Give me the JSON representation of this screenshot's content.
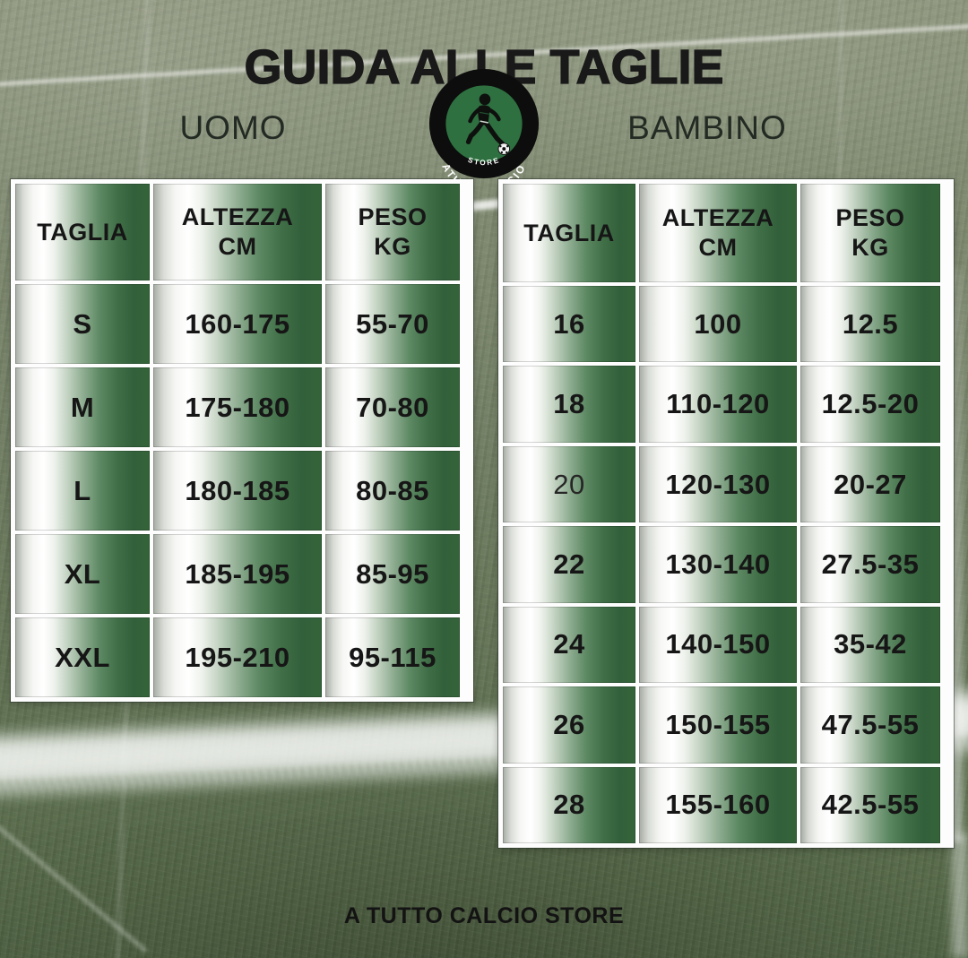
{
  "title": "GUIDA ALLE TAGLIE",
  "sections": {
    "uomo_label": "UOMO",
    "bambino_label": "BAMBINO"
  },
  "logo": {
    "arc_text": "ATUTTOCALCIO",
    "bottom_text": "STORE"
  },
  "tables": {
    "uomo": {
      "headers": [
        [
          "TAGLIA"
        ],
        [
          "ALTEZZA",
          "CM"
        ],
        [
          "PESO",
          "KG"
        ]
      ],
      "rows": [
        [
          "S",
          "160-175",
          "55-70"
        ],
        [
          "M",
          "175-180",
          "70-80"
        ],
        [
          "L",
          "180-185",
          "80-85"
        ],
        [
          "XL",
          "185-195",
          "85-95"
        ],
        [
          "XXL",
          "195-210",
          "95-115"
        ]
      ]
    },
    "bambino": {
      "headers": [
        [
          "TAGLIA"
        ],
        [
          "ALTEZZA",
          "CM"
        ],
        [
          "PESO",
          "KG"
        ]
      ],
      "rows": [
        [
          "16",
          "100",
          "12.5"
        ],
        [
          "18",
          "110-120",
          "12.5-20"
        ],
        [
          "20",
          "120-130",
          "20-27"
        ],
        [
          "22",
          "130-140",
          "27.5-35"
        ],
        [
          "24",
          "140-150",
          "35-42"
        ],
        [
          "26",
          "150-155",
          "47.5-55"
        ],
        [
          "28",
          "155-160",
          "42.5-55"
        ]
      ]
    }
  },
  "footer": "A TUTTO CALCIO STORE",
  "colors": {
    "cell_dark_green": "#2f5f36",
    "logo_green": "#2e7040",
    "grass_green": "#6b7a5e",
    "text_black": "#161616",
    "line_white": "#f4f6f3"
  }
}
